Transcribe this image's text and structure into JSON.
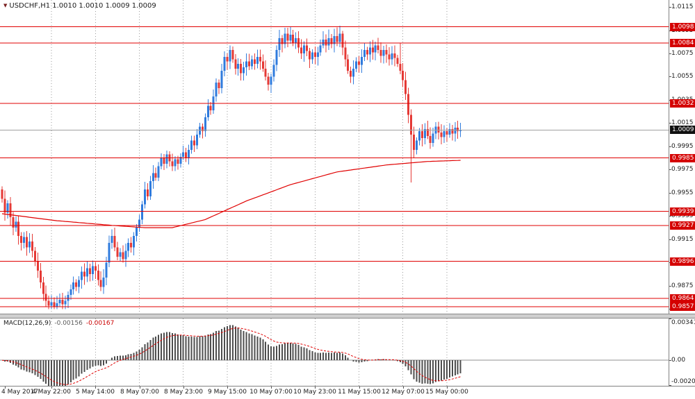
{
  "header": {
    "marker": "▼",
    "title": "USDCHF,H1 1.0010 1.0010 1.0009 1.0009"
  },
  "colors": {
    "up": "#2f7bdd",
    "down": "#e53935",
    "line_red": "#e00000",
    "ma": "#e00000",
    "grid": "#9a9a9a",
    "bid_line": "#a0a0a0",
    "badge_red": "#d40000",
    "badge_bid": "#101010",
    "histogram": "#4d4d4d",
    "zero_line": "#909090",
    "signal": "#e00000",
    "axis_text": "#1a1a1a"
  },
  "chart_data": {
    "type": "candlestick",
    "symbol": "USDCHF",
    "timeframe": "H1",
    "last_ohlc": {
      "open": 1.001,
      "high": 1.001,
      "low": 1.0009,
      "close": 1.0009
    },
    "ylim": [
      0.9851,
      1.0121
    ],
    "grid": "vertical-dotted",
    "first_open": 0.9958,
    "wick_base": 0.0005,
    "clamp_high": 1.0099,
    "clamp_low": 0.9855,
    "closes": [
      0.995,
      0.9938,
      0.9946,
      0.9934,
      0.9925,
      0.993,
      0.9918,
      0.9912,
      0.9917,
      0.9908,
      0.9913,
      0.9905,
      0.9896,
      0.9888,
      0.9878,
      0.9868,
      0.9862,
      0.9858,
      0.9861,
      0.9857,
      0.986,
      0.9863,
      0.9859,
      0.9862,
      0.9867,
      0.9872,
      0.9878,
      0.9874,
      0.988,
      0.9887,
      0.9883,
      0.989,
      0.9885,
      0.9892,
      0.9888,
      0.988,
      0.9874,
      0.9882,
      0.9895,
      0.9912,
      0.9918,
      0.9908,
      0.99,
      0.9904,
      0.9898,
      0.9905,
      0.9912,
      0.9908,
      0.9918,
      0.9925,
      0.9932,
      0.9945,
      0.9958,
      0.9952,
      0.9965,
      0.9972,
      0.9968,
      0.9978,
      0.9985,
      0.998,
      0.9988,
      0.9982,
      0.9978,
      0.9984,
      0.998,
      0.9986,
      0.999,
      0.9985,
      0.9992,
      1.0,
      0.9996,
      1.0005,
      1.0012,
      1.0008,
      1.002,
      1.003,
      1.0026,
      1.0038,
      1.005,
      1.0045,
      1.006,
      1.0072,
      1.0068,
      1.0078,
      1.007,
      1.0062,
      1.0066,
      1.0058,
      1.0063,
      1.0068,
      1.0064,
      1.007,
      1.0066,
      1.0072,
      1.0068,
      1.0062,
      1.0055,
      1.0048,
      1.0055,
      1.0065,
      1.0078,
      1.0088,
      1.0083,
      1.0092,
      1.0086,
      1.0091,
      1.0084,
      1.0088,
      1.008,
      1.0075,
      1.0082,
      1.0077,
      1.007,
      1.0076,
      1.0072,
      1.0076,
      1.0082,
      1.0087,
      1.0082,
      1.0088,
      1.0083,
      1.009,
      1.0085,
      1.0092,
      1.008,
      1.007,
      1.006,
      1.0055,
      1.0062,
      1.0068,
      1.0065,
      1.0072,
      1.0078,
      1.0074,
      1.008,
      1.0076,
      1.0082,
      1.0078,
      1.0073,
      1.0078,
      1.0074,
      1.007,
      1.0075,
      1.0071,
      1.0066,
      1.006,
      1.0052,
      1.004,
      1.0022,
      1.0005,
      0.9992,
      1.0,
      1.0008,
      1.0002,
      1.001,
      1.0004,
      0.9998,
      1.0006,
      1.0012,
      1.0007,
      1.0003,
      1.0008,
      1.0005,
      1.001,
      1.0006,
      1.0011,
      1.0008,
      1.0009
    ],
    "extremes": {
      "1": {
        "low": 0.9931
      },
      "19": {
        "low": 0.9855
      },
      "103": {
        "high": 1.0097
      },
      "123": {
        "high": 1.0099
      },
      "145": {
        "high": 1.0084
      },
      "149": {
        "low": 0.9964
      },
      "150": {
        "low": 0.9985
      }
    },
    "x_labels": [
      {
        "label": "4 May 2017",
        "bar": 1,
        "grid": false
      },
      {
        "label": "4 May 22:00",
        "bar": 18,
        "grid": true
      },
      {
        "label": "5 May 14:00",
        "bar": 34,
        "grid": true
      },
      {
        "label": "8 May 07:00",
        "bar": 50,
        "grid": true
      },
      {
        "label": "8 May 23:00",
        "bar": 66,
        "grid": true
      },
      {
        "label": "9 May 15:00",
        "bar": 82,
        "grid": true
      },
      {
        "label": "10 May 07:00",
        "bar": 98,
        "grid": true
      },
      {
        "label": "10 May 23:00",
        "bar": 114,
        "grid": true
      },
      {
        "label": "11 May 15:00",
        "bar": 130,
        "grid": true
      },
      {
        "label": "12 May 07:00",
        "bar": 146,
        "grid": true
      },
      {
        "label": "15 May 00:00",
        "bar": 162,
        "grid": true
      }
    ],
    "y_ticks": [
      "1.0115",
      "1.0095",
      "1.0075",
      "1.0055",
      "1.0035",
      "1.0015",
      "0.9995",
      "0.9975",
      "0.9955",
      "0.9935",
      "0.9915",
      "0.9895",
      "0.9875",
      "0.9855"
    ],
    "hlines": [
      {
        "price": 1.0098,
        "label": "1.0098"
      },
      {
        "price": 1.0084,
        "label": "1.0084"
      },
      {
        "price": 1.0032,
        "label": "1.0032"
      },
      {
        "price": 0.9985,
        "label": "0.9985"
      },
      {
        "price": 0.9939,
        "label": "0.9939"
      },
      {
        "price": 0.9927,
        "label": "0.9927"
      },
      {
        "price": 0.9896,
        "label": "0.9896"
      },
      {
        "price": 0.9864,
        "label": "0.9864"
      },
      {
        "price": 0.9857,
        "label": "0.9857"
      }
    ],
    "bid": {
      "price": 1.0009,
      "label": "1.0009"
    },
    "ma_anchors": [
      [
        0,
        0.9937
      ],
      [
        20,
        0.9931
      ],
      [
        40,
        0.9927
      ],
      [
        52,
        0.9925
      ],
      [
        62,
        0.9925
      ],
      [
        74,
        0.9932
      ],
      [
        89,
        0.9948
      ],
      [
        105,
        0.9962
      ],
      [
        122,
        0.9973
      ],
      [
        140,
        0.9979
      ],
      [
        155,
        0.9982
      ],
      [
        167,
        0.9983
      ]
    ],
    "macd": {
      "legend": "MACD(12,26,9)",
      "value": "-0.00156",
      "signal_value": "-0.00167",
      "fast": 12,
      "slow": 26,
      "signal": 9,
      "ylim": [
        -0.00208,
        0.00341
      ],
      "y_ticks": [
        {
          "label": "0.00341",
          "value": 0.00341
        },
        {
          "label": "0.00",
          "value": 0
        },
        {
          "label": "-0.00208",
          "value": -0.00208
        }
      ]
    }
  }
}
